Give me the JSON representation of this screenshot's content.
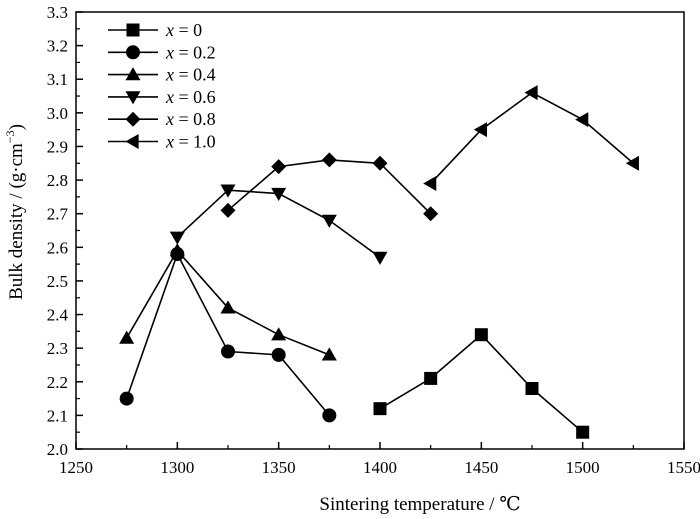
{
  "chart_data": {
    "type": "line",
    "title": "",
    "xlabel": "Sintering temperature / ℃",
    "ylabel": "Bulk density / (g·cm",
    "ylabel_sup": "−3",
    "ylabel_end": ")",
    "xlim": [
      1250,
      1550
    ],
    "ylim": [
      2.0,
      3.3
    ],
    "xticks": [
      1250,
      1300,
      1350,
      1400,
      1450,
      1500,
      1550
    ],
    "yticks": [
      2.0,
      2.1,
      2.2,
      2.3,
      2.4,
      2.5,
      2.6,
      2.7,
      2.8,
      2.9,
      3.0,
      3.1,
      3.2,
      3.3
    ],
    "xtick_labels": [
      "1250",
      "1300",
      "1350",
      "1400",
      "1450",
      "1500",
      "1550"
    ],
    "ytick_labels": [
      "2.0",
      "2.1",
      "2.2",
      "2.3",
      "2.4",
      "2.5",
      "2.6",
      "2.7",
      "2.8",
      "2.9",
      "3.0",
      "3.1",
      "3.2",
      "3.3"
    ],
    "grid": false,
    "legend_position": "top-left",
    "legend_var": "x",
    "series": [
      {
        "name": "= 0",
        "marker": "square",
        "x": [
          1400,
          1425,
          1450,
          1475,
          1500
        ],
        "y": [
          2.12,
          2.21,
          2.34,
          2.18,
          2.05
        ]
      },
      {
        "name": "= 0.2",
        "marker": "circle",
        "x": [
          1275,
          1300,
          1325,
          1350,
          1375
        ],
        "y": [
          2.15,
          2.58,
          2.29,
          2.28,
          2.1
        ]
      },
      {
        "name": "= 0.4",
        "marker": "triangle-up",
        "x": [
          1275,
          1300,
          1325,
          1350,
          1375
        ],
        "y": [
          2.33,
          2.59,
          2.42,
          2.34,
          2.28
        ]
      },
      {
        "name": "= 0.6",
        "marker": "triangle-down",
        "x": [
          1300,
          1325,
          1350,
          1375,
          1400
        ],
        "y": [
          2.63,
          2.77,
          2.76,
          2.68,
          2.57
        ]
      },
      {
        "name": "= 0.8",
        "marker": "diamond",
        "x": [
          1325,
          1350,
          1375,
          1400,
          1425
        ],
        "y": [
          2.71,
          2.84,
          2.86,
          2.85,
          2.7
        ]
      },
      {
        "name": "= 1.0",
        "marker": "triangle-left",
        "x": [
          1425,
          1450,
          1475,
          1500,
          1525
        ],
        "y": [
          2.79,
          2.95,
          3.06,
          2.98,
          2.85
        ]
      }
    ]
  }
}
